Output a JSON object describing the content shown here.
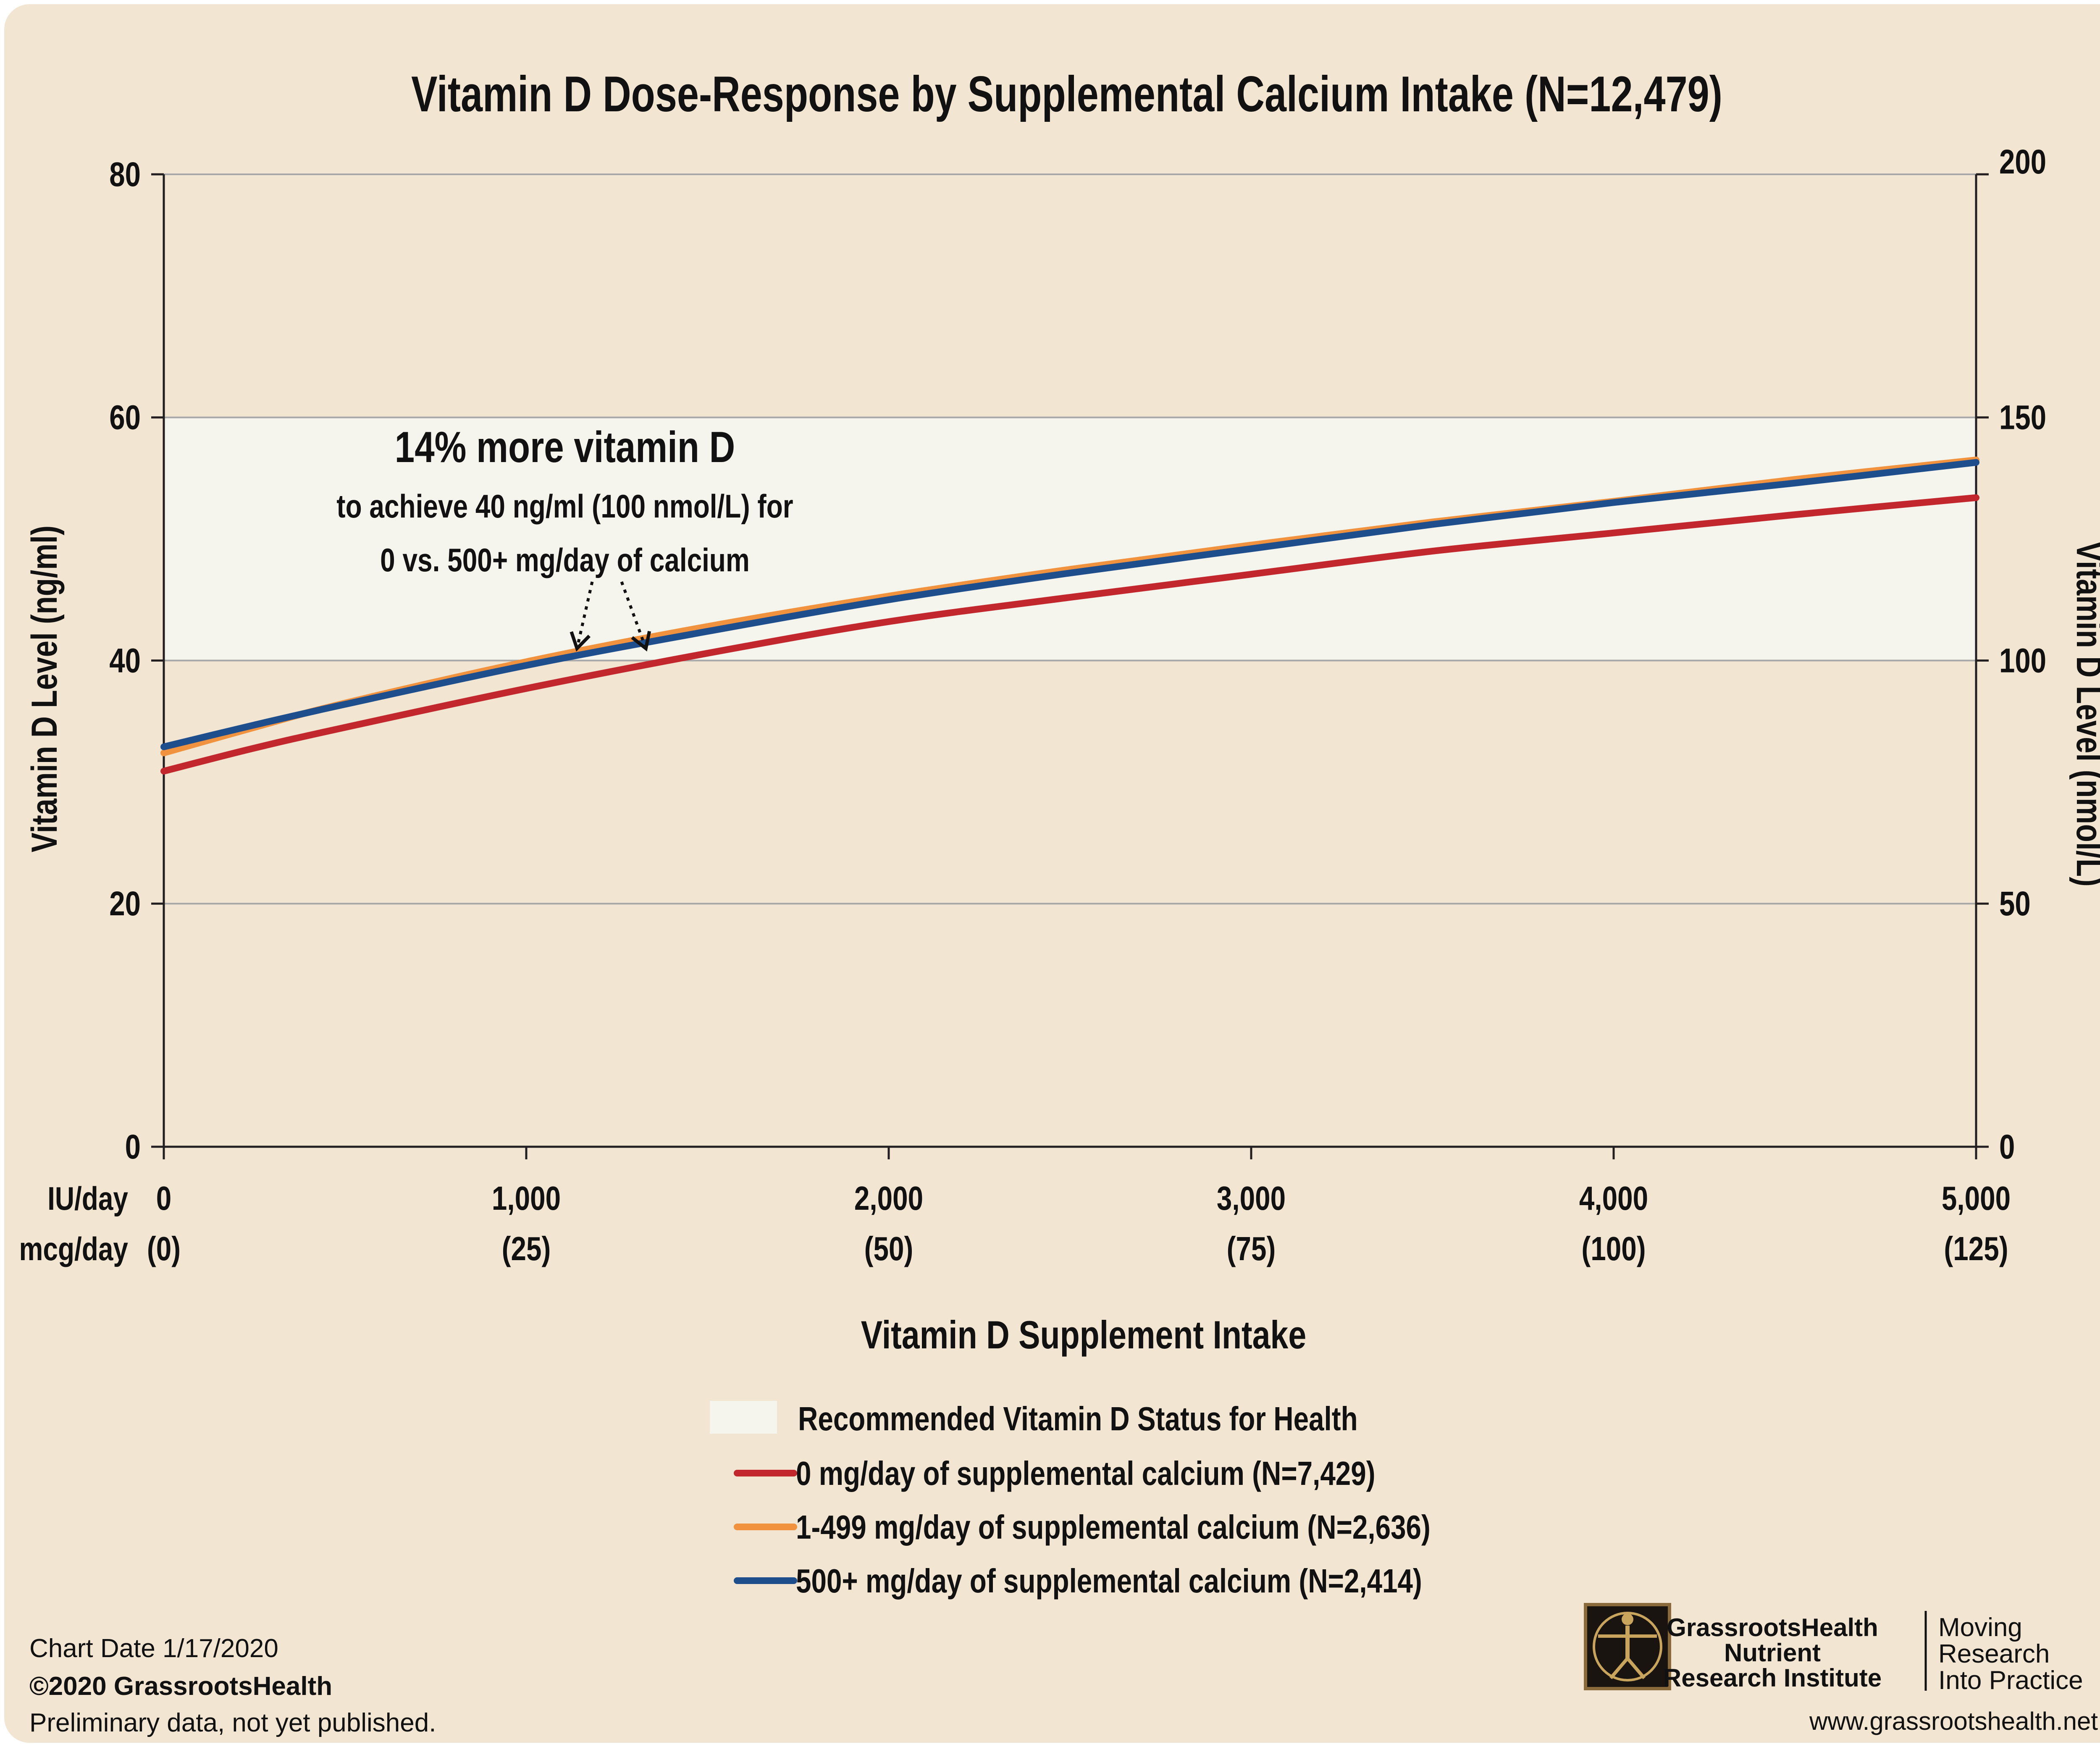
{
  "chart_data": {
    "type": "line",
    "title": "Vitamin D Dose-Response by Supplemental Calcium Intake (N=12,479)",
    "xlabel": "Vitamin D Supplement Intake",
    "x_row_labels": [
      "IU/day",
      "mcg/day"
    ],
    "x_ticks": [
      0,
      1000,
      2000,
      3000,
      4000,
      5000
    ],
    "x_tick_labels": [
      "0",
      "1,000",
      "2,000",
      "3,000",
      "4,000",
      "5,000"
    ],
    "x_tick_labels_secondary": [
      "(0)",
      "(25)",
      "(50)",
      "(75)",
      "(100)",
      "(125)"
    ],
    "xlim": [
      0,
      5000
    ],
    "ylabel": "Vitamin D Level (ng/ml)",
    "ylim": [
      0,
      80
    ],
    "y_ticks": [
      0,
      20,
      40,
      60,
      80
    ],
    "y_tick_labels": [
      "0",
      "20",
      "40",
      "60",
      "80"
    ],
    "y2label": "Vitamin D Level (nmol/L)",
    "y2lim": [
      0,
      200
    ],
    "y2_ticks": [
      0,
      50,
      100,
      150,
      200
    ],
    "y2_tick_labels": [
      "0",
      "50",
      "100",
      "150",
      "200"
    ],
    "band": {
      "name": "Recommended Vitamin D Status for Health",
      "y_from": 40,
      "y_to": 60,
      "color": "#f5f5ee"
    },
    "x": [
      0,
      250,
      500,
      1000,
      1500,
      2000,
      2500,
      3000,
      3500,
      4000,
      4500,
      5000
    ],
    "series": [
      {
        "name": "0 mg/day of supplemental calcium (N=7,429)",
        "color": "#c1272d",
        "values": [
          30.9,
          32.8,
          34.5,
          37.7,
          40.6,
          43.2,
          45.2,
          47.1,
          49.0,
          50.5,
          52.0,
          53.4
        ]
      },
      {
        "name": "1-499 mg/day of supplemental calcium (N=2,636)",
        "color": "#f0923e",
        "values": [
          32.4,
          34.5,
          36.5,
          39.9,
          42.8,
          45.3,
          47.5,
          49.5,
          51.4,
          53.1,
          54.9,
          56.5
        ]
      },
      {
        "name": "500+ mg/day of supplemental calcium (N=2,414)",
        "color": "#1f4e8c",
        "values": [
          32.9,
          34.7,
          36.4,
          39.6,
          42.4,
          45.0,
          47.2,
          49.2,
          51.2,
          53.0,
          54.6,
          56.3
        ]
      }
    ],
    "annotation": {
      "headline": "14% more vitamin D",
      "line1": "to achieve 40 ng/ml (100 nmol/L) for",
      "line2": "0 vs. 500+ mg/day of calcium",
      "targets": [
        {
          "x": 1140,
          "y": 40.3
        },
        {
          "x": 1330,
          "y": 40.3
        }
      ]
    },
    "grid": true,
    "legend_position": "bottom"
  },
  "footer": {
    "chart_date": "Chart Date 1/17/2020",
    "copyright": "©2020 GrassrootsHealth",
    "note": "Preliminary data, not yet published.",
    "logo_line1": "GrassrootsHealth",
    "logo_line2": "Nutrient",
    "logo_line3": "Research Institute",
    "tagline_line1": "Moving",
    "tagline_line2": "Research",
    "tagline_line3": "Into Practice",
    "website": "www.grassrootshealth.net"
  },
  "colors": {
    "background": "#f2e6d3",
    "axis": "#231f20",
    "gridline": "#a8a8a8"
  }
}
